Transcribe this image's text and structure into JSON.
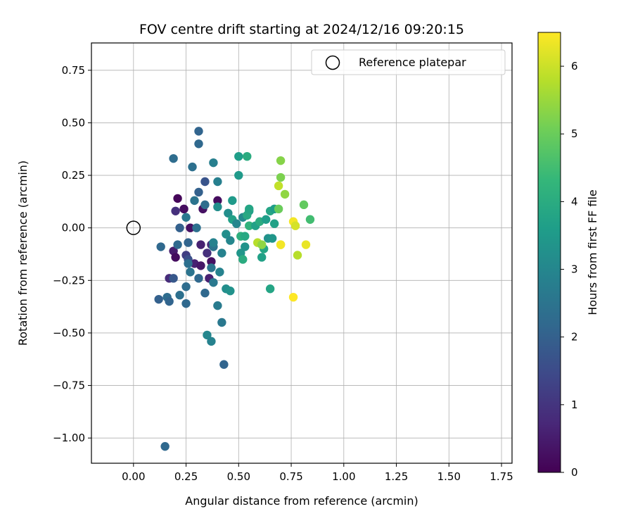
{
  "chart_data": {
    "type": "scatter",
    "title": "FOV centre drift starting at 2024/12/16 09:20:15",
    "xlabel": "Angular distance from reference (arcmin)",
    "ylabel": "Rotation from reference (arcmin)",
    "xlim": [
      -0.2,
      1.8
    ],
    "ylim": [
      -1.12,
      0.88
    ],
    "xticks": [
      0.0,
      0.25,
      0.5,
      0.75,
      1.0,
      1.25,
      1.5,
      1.75
    ],
    "xtick_labels": [
      "0.00",
      "0.25",
      "0.50",
      "0.75",
      "1.00",
      "1.25",
      "1.50",
      "1.75"
    ],
    "yticks": [
      0.75,
      0.5,
      0.25,
      0.0,
      -0.25,
      -0.5,
      -0.75,
      -1.0
    ],
    "ytick_labels": [
      "0.75",
      "0.50",
      "0.25",
      "0.00",
      "−0.25",
      "−0.50",
      "−0.75",
      "−1.00"
    ],
    "grid": true,
    "legend": {
      "placement": "top-right",
      "entries": [
        {
          "label": "Reference platepar",
          "marker": "open-circle",
          "x": 0.0,
          "y": 0.0
        }
      ]
    },
    "colorbar": {
      "label": "Hours from first FF file",
      "colormap": "viridis",
      "range": [
        0,
        6.5
      ],
      "ticks": [
        0,
        1,
        2,
        3,
        4,
        5,
        6
      ],
      "tick_labels": [
        "0",
        "1",
        "2",
        "3",
        "4",
        "5",
        "6"
      ],
      "stops": [
        "#440154",
        "#482878",
        "#3e4989",
        "#31688e",
        "#26828e",
        "#1f9e89",
        "#35b779",
        "#6ece58",
        "#b5de2b",
        "#fde725"
      ]
    },
    "points": [
      {
        "x": 0.21,
        "y": 0.14,
        "c": 0.1
      },
      {
        "x": 0.24,
        "y": 0.09,
        "c": 0.2
      },
      {
        "x": 0.33,
        "y": 0.09,
        "c": 0.3
      },
      {
        "x": 0.4,
        "y": 0.13,
        "c": 0.2
      },
      {
        "x": 0.2,
        "y": 0.08,
        "c": 0.9
      },
      {
        "x": 0.27,
        "y": 0.0,
        "c": 0.3
      },
      {
        "x": 0.19,
        "y": -0.11,
        "c": 0.5
      },
      {
        "x": 0.2,
        "y": -0.14,
        "c": 0.2
      },
      {
        "x": 0.29,
        "y": -0.17,
        "c": 0.6
      },
      {
        "x": 0.32,
        "y": -0.18,
        "c": 0.4
      },
      {
        "x": 0.32,
        "y": -0.08,
        "c": 0.6
      },
      {
        "x": 0.37,
        "y": -0.08,
        "c": 0.8
      },
      {
        "x": 0.35,
        "y": -0.12,
        "c": 0.9
      },
      {
        "x": 0.37,
        "y": -0.16,
        "c": 0.3
      },
      {
        "x": 0.36,
        "y": -0.24,
        "c": 0.6
      },
      {
        "x": 0.17,
        "y": -0.24,
        "c": 0.8
      },
      {
        "x": 0.25,
        "y": -0.13,
        "c": 1.2
      },
      {
        "x": 0.26,
        "y": -0.15,
        "c": 1.6
      },
      {
        "x": 0.34,
        "y": 0.22,
        "c": 1.7
      },
      {
        "x": 0.22,
        "y": 0.0,
        "c": 2.0
      },
      {
        "x": 0.26,
        "y": -0.07,
        "c": 2.1
      },
      {
        "x": 0.21,
        "y": -0.08,
        "c": 2.2
      },
      {
        "x": 0.19,
        "y": 0.33,
        "c": 2.3
      },
      {
        "x": 0.28,
        "y": 0.29,
        "c": 2.4
      },
      {
        "x": 0.31,
        "y": 0.46,
        "c": 2.1
      },
      {
        "x": 0.31,
        "y": 0.4,
        "c": 2.2
      },
      {
        "x": 0.31,
        "y": 0.17,
        "c": 2.0
      },
      {
        "x": 0.29,
        "y": 0.13,
        "c": 2.5
      },
      {
        "x": 0.34,
        "y": 0.11,
        "c": 2.3
      },
      {
        "x": 0.25,
        "y": 0.05,
        "c": 2.6
      },
      {
        "x": 0.3,
        "y": 0.0,
        "c": 2.4
      },
      {
        "x": 0.13,
        "y": -0.09,
        "c": 2.2
      },
      {
        "x": 0.19,
        "y": -0.24,
        "c": 1.8
      },
      {
        "x": 0.27,
        "y": -0.21,
        "c": 2.5
      },
      {
        "x": 0.26,
        "y": -0.17,
        "c": 2.4
      },
      {
        "x": 0.31,
        "y": -0.24,
        "c": 2.2
      },
      {
        "x": 0.12,
        "y": -0.34,
        "c": 2.0
      },
      {
        "x": 0.16,
        "y": -0.33,
        "c": 2.3
      },
      {
        "x": 0.17,
        "y": -0.35,
        "c": 2.1
      },
      {
        "x": 0.22,
        "y": -0.32,
        "c": 2.4
      },
      {
        "x": 0.25,
        "y": -0.28,
        "c": 2.3
      },
      {
        "x": 0.25,
        "y": -0.36,
        "c": 2.2
      },
      {
        "x": 0.34,
        "y": -0.31,
        "c": 2.2
      },
      {
        "x": 0.37,
        "y": -0.19,
        "c": 2.5
      },
      {
        "x": 0.38,
        "y": -0.26,
        "c": 2.6
      },
      {
        "x": 0.38,
        "y": -0.09,
        "c": 2.5
      },
      {
        "x": 0.4,
        "y": -0.37,
        "c": 2.7
      },
      {
        "x": 0.42,
        "y": -0.45,
        "c": 2.6
      },
      {
        "x": 0.35,
        "y": -0.51,
        "c": 3.0
      },
      {
        "x": 0.37,
        "y": -0.54,
        "c": 2.9
      },
      {
        "x": 0.43,
        "y": -0.65,
        "c": 2.1
      },
      {
        "x": 0.15,
        "y": -1.04,
        "c": 2.2
      },
      {
        "x": 0.38,
        "y": 0.31,
        "c": 2.8
      },
      {
        "x": 0.4,
        "y": 0.22,
        "c": 2.8
      },
      {
        "x": 0.4,
        "y": 0.1,
        "c": 3.2
      },
      {
        "x": 0.38,
        "y": -0.07,
        "c": 2.9
      },
      {
        "x": 0.41,
        "y": -0.21,
        "c": 2.9
      },
      {
        "x": 0.42,
        "y": -0.12,
        "c": 2.9
      },
      {
        "x": 0.44,
        "y": -0.29,
        "c": 3.2
      },
      {
        "x": 0.46,
        "y": -0.3,
        "c": 3.3
      },
      {
        "x": 0.44,
        "y": -0.03,
        "c": 3.2
      },
      {
        "x": 0.45,
        "y": 0.07,
        "c": 3.2
      },
      {
        "x": 0.47,
        "y": 0.13,
        "c": 3.5
      },
      {
        "x": 0.46,
        "y": -0.06,
        "c": 3.0
      },
      {
        "x": 0.47,
        "y": 0.04,
        "c": 3.7
      },
      {
        "x": 0.49,
        "y": 0.02,
        "c": 3.0
      },
      {
        "x": 0.5,
        "y": 0.34,
        "c": 3.6
      },
      {
        "x": 0.5,
        "y": 0.25,
        "c": 3.5
      },
      {
        "x": 0.52,
        "y": 0.05,
        "c": 3.1
      },
      {
        "x": 0.51,
        "y": -0.12,
        "c": 3.4
      },
      {
        "x": 0.53,
        "y": -0.09,
        "c": 3.3
      },
      {
        "x": 0.54,
        "y": 0.34,
        "c": 4.0
      },
      {
        "x": 0.55,
        "y": 0.08,
        "c": 3.6
      },
      {
        "x": 0.54,
        "y": 0.06,
        "c": 3.9
      },
      {
        "x": 0.55,
        "y": 0.01,
        "c": 4.2
      },
      {
        "x": 0.52,
        "y": -0.15,
        "c": 4.0
      },
      {
        "x": 0.51,
        "y": -0.04,
        "c": 4.1
      },
      {
        "x": 0.53,
        "y": -0.04,
        "c": 3.9
      },
      {
        "x": 0.55,
        "y": 0.09,
        "c": 3.8
      },
      {
        "x": 0.58,
        "y": 0.01,
        "c": 3.7
      },
      {
        "x": 0.6,
        "y": 0.03,
        "c": 4.0
      },
      {
        "x": 0.62,
        "y": -0.1,
        "c": 3.8
      },
      {
        "x": 0.61,
        "y": -0.14,
        "c": 3.7
      },
      {
        "x": 0.63,
        "y": 0.04,
        "c": 3.6
      },
      {
        "x": 0.64,
        "y": -0.05,
        "c": 3.3
      },
      {
        "x": 0.65,
        "y": 0.08,
        "c": 3.8
      },
      {
        "x": 0.66,
        "y": -0.05,
        "c": 3.4
      },
      {
        "x": 0.67,
        "y": 0.02,
        "c": 3.7
      },
      {
        "x": 0.67,
        "y": 0.09,
        "c": 3.6
      },
      {
        "x": 0.65,
        "y": -0.29,
        "c": 3.8
      },
      {
        "x": 0.59,
        "y": -0.07,
        "c": 5.8
      },
      {
        "x": 0.61,
        "y": -0.08,
        "c": 5.4
      },
      {
        "x": 0.69,
        "y": 0.09,
        "c": 5.0
      },
      {
        "x": 0.7,
        "y": 0.24,
        "c": 5.2
      },
      {
        "x": 0.7,
        "y": 0.32,
        "c": 5.3
      },
      {
        "x": 0.69,
        "y": 0.2,
        "c": 5.9
      },
      {
        "x": 0.72,
        "y": 0.16,
        "c": 5.4
      },
      {
        "x": 0.7,
        "y": -0.08,
        "c": 6.1
      },
      {
        "x": 0.7,
        "y": -0.08,
        "c": 6.4
      },
      {
        "x": 0.76,
        "y": 0.03,
        "c": 6.4
      },
      {
        "x": 0.77,
        "y": 0.01,
        "c": 6.1
      },
      {
        "x": 0.78,
        "y": -0.13,
        "c": 5.8
      },
      {
        "x": 0.81,
        "y": 0.11,
        "c": 4.9
      },
      {
        "x": 0.82,
        "y": -0.08,
        "c": 6.3
      },
      {
        "x": 0.84,
        "y": 0.04,
        "c": 4.5
      },
      {
        "x": 0.76,
        "y": -0.33,
        "c": 6.5
      }
    ]
  }
}
